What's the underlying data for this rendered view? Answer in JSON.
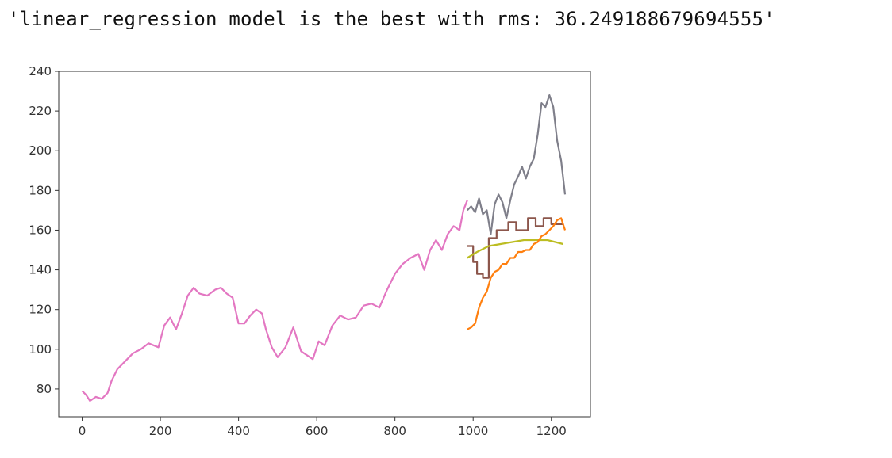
{
  "output": {
    "text": "'linear_regression model is the best with rms: 36.249188679694555'"
  },
  "chart_data": {
    "type": "line",
    "title": "",
    "xlabel": "",
    "ylabel": "",
    "xlim": [
      -60,
      1300
    ],
    "ylim": [
      66,
      240
    ],
    "x_ticks": [
      0,
      200,
      400,
      600,
      800,
      1000,
      1200
    ],
    "y_ticks": [
      80,
      100,
      120,
      140,
      160,
      180,
      200,
      220,
      240
    ],
    "grid": false,
    "legend": "none",
    "series": [
      {
        "color": "#e377c2",
        "points": [
          [
            0,
            79
          ],
          [
            10,
            77
          ],
          [
            20,
            74
          ],
          [
            35,
            76
          ],
          [
            50,
            75
          ],
          [
            65,
            78
          ],
          [
            75,
            84
          ],
          [
            90,
            90
          ],
          [
            110,
            94
          ],
          [
            130,
            98
          ],
          [
            150,
            100
          ],
          [
            170,
            103
          ],
          [
            195,
            101
          ],
          [
            210,
            112
          ],
          [
            225,
            116
          ],
          [
            240,
            110
          ],
          [
            255,
            118
          ],
          [
            270,
            127
          ],
          [
            285,
            131
          ],
          [
            300,
            128
          ],
          [
            320,
            127
          ],
          [
            340,
            130
          ],
          [
            355,
            131
          ],
          [
            370,
            128
          ],
          [
            385,
            126
          ],
          [
            400,
            113
          ],
          [
            415,
            113
          ],
          [
            430,
            117
          ],
          [
            445,
            120
          ],
          [
            460,
            118
          ],
          [
            470,
            110
          ],
          [
            485,
            101
          ],
          [
            500,
            96
          ],
          [
            520,
            101
          ],
          [
            540,
            111
          ],
          [
            560,
            99
          ],
          [
            575,
            97
          ],
          [
            590,
            95
          ],
          [
            605,
            104
          ],
          [
            620,
            102
          ],
          [
            640,
            112
          ],
          [
            660,
            117
          ],
          [
            680,
            115
          ],
          [
            700,
            116
          ],
          [
            720,
            122
          ],
          [
            740,
            123
          ],
          [
            760,
            121
          ],
          [
            780,
            130
          ],
          [
            800,
            138
          ],
          [
            820,
            143
          ],
          [
            840,
            146
          ],
          [
            860,
            148
          ],
          [
            875,
            140
          ],
          [
            890,
            150
          ],
          [
            905,
            155
          ],
          [
            920,
            150
          ],
          [
            935,
            158
          ],
          [
            950,
            162
          ],
          [
            965,
            160
          ],
          [
            975,
            170
          ],
          [
            985,
            175
          ]
        ]
      },
      {
        "color": "#7f7f8a",
        "points": [
          [
            985,
            170
          ],
          [
            995,
            172
          ],
          [
            1005,
            169
          ],
          [
            1015,
            176
          ],
          [
            1025,
            168
          ],
          [
            1035,
            170
          ],
          [
            1045,
            158
          ],
          [
            1055,
            173
          ],
          [
            1065,
            178
          ],
          [
            1075,
            174
          ],
          [
            1085,
            166
          ],
          [
            1095,
            175
          ],
          [
            1105,
            183
          ],
          [
            1115,
            187
          ],
          [
            1125,
            192
          ],
          [
            1135,
            186
          ],
          [
            1145,
            192
          ],
          [
            1155,
            196
          ],
          [
            1165,
            208
          ],
          [
            1175,
            224
          ],
          [
            1185,
            222
          ],
          [
            1195,
            228
          ],
          [
            1205,
            222
          ],
          [
            1215,
            205
          ],
          [
            1225,
            195
          ],
          [
            1235,
            178
          ]
        ]
      },
      {
        "color": "#8c564b",
        "points": [
          [
            985,
            152
          ],
          [
            1000,
            152
          ],
          [
            1000,
            144
          ],
          [
            1010,
            144
          ],
          [
            1010,
            138
          ],
          [
            1025,
            138
          ],
          [
            1025,
            136
          ],
          [
            1040,
            136
          ],
          [
            1040,
            156
          ],
          [
            1060,
            156
          ],
          [
            1060,
            160
          ],
          [
            1090,
            160
          ],
          [
            1090,
            164
          ],
          [
            1110,
            164
          ],
          [
            1110,
            160
          ],
          [
            1140,
            160
          ],
          [
            1140,
            166
          ],
          [
            1160,
            166
          ],
          [
            1160,
            162
          ],
          [
            1180,
            162
          ],
          [
            1180,
            166
          ],
          [
            1200,
            166
          ],
          [
            1200,
            163
          ],
          [
            1230,
            163
          ]
        ]
      },
      {
        "color": "#bcbd22",
        "points": [
          [
            985,
            146
          ],
          [
            1010,
            149
          ],
          [
            1040,
            152
          ],
          [
            1070,
            153
          ],
          [
            1100,
            154
          ],
          [
            1130,
            155
          ],
          [
            1160,
            155
          ],
          [
            1190,
            155
          ],
          [
            1210,
            154
          ],
          [
            1230,
            153
          ]
        ]
      },
      {
        "color": "#ff7f0e",
        "points": [
          [
            985,
            110
          ],
          [
            995,
            111
          ],
          [
            1005,
            113
          ],
          [
            1015,
            121
          ],
          [
            1025,
            126
          ],
          [
            1035,
            129
          ],
          [
            1045,
            136
          ],
          [
            1055,
            139
          ],
          [
            1065,
            140
          ],
          [
            1075,
            143
          ],
          [
            1085,
            143
          ],
          [
            1095,
            146
          ],
          [
            1105,
            146
          ],
          [
            1115,
            149
          ],
          [
            1125,
            149
          ],
          [
            1135,
            150
          ],
          [
            1145,
            150
          ],
          [
            1155,
            153
          ],
          [
            1165,
            154
          ],
          [
            1175,
            157
          ],
          [
            1185,
            158
          ],
          [
            1195,
            160
          ],
          [
            1205,
            162
          ],
          [
            1215,
            165
          ],
          [
            1225,
            166
          ],
          [
            1235,
            160
          ]
        ]
      }
    ]
  }
}
